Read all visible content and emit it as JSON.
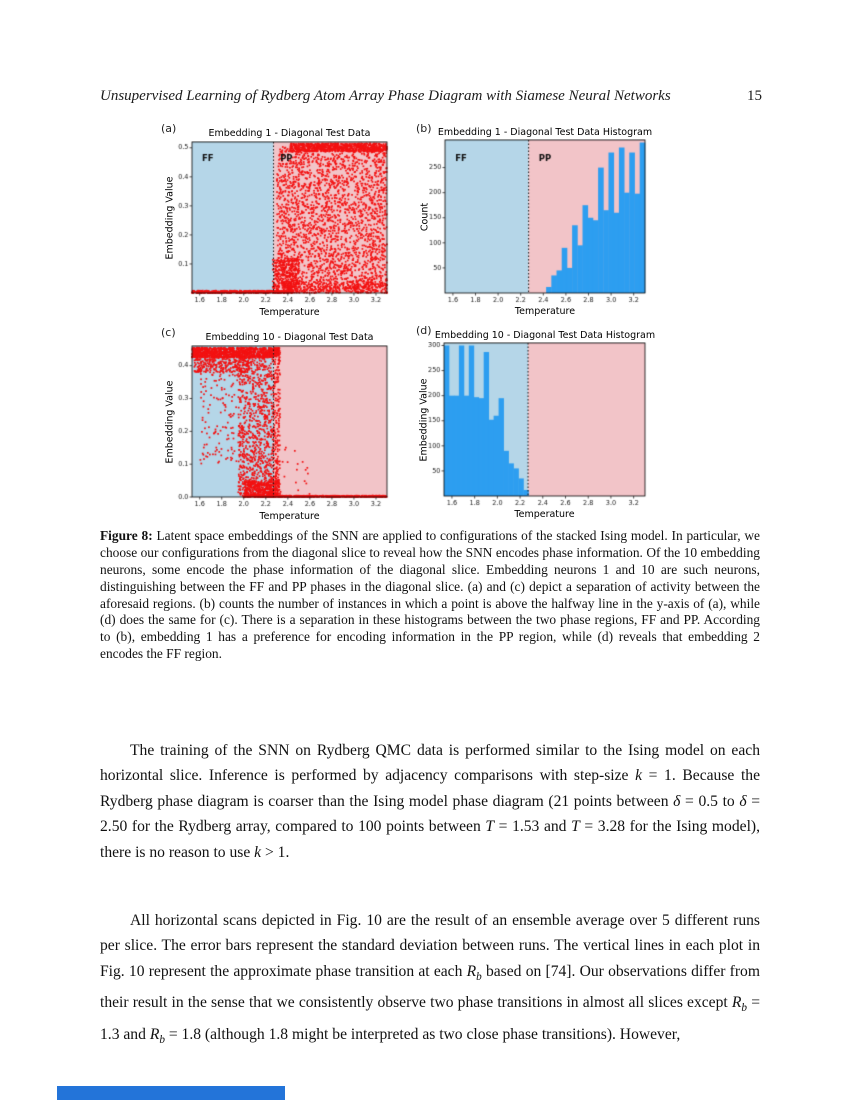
{
  "header": {
    "title": "Unsupervised Learning of Rydberg Atom Array Phase Diagram with Siamese Neural Networks",
    "page_number": "15"
  },
  "caption": {
    "label": "Figure 8:",
    "text": "Latent space embeddings of the SNN are applied to configurations of the stacked Ising model. In particular, we choose our configurations from the diagonal slice to reveal how the SNN encodes phase information. Of the 10 embedding neurons, some encode the phase information of the diagonal slice. Embedding neurons 1 and 10 are such neurons, distinguishing between the FF and PP phases in the diagonal slice. (a) and (c) depict a separation of activity between the aforesaid regions. (b) counts the number of instances in which a point is above the halfway line in the y-axis of (a), while (d) does the same for (c). There is a separation in these histograms between the two phase regions, FF and PP. According to (b), embedding 1 has a preference for encoding information in the PP region, while (d) reveals that embedding 2 encodes the FF region."
  },
  "paragraphs": [
    "The training of the SNN on Rydberg QMC data is performed similar to the Ising model on each horizontal slice. Inference is performed by adjacency comparisons with step-size *k* = 1. Because the Rydberg phase diagram is coarser than the Ising model phase diagram (21 points between *δ* = 0.5 to *δ* = 2.50 for the Rydberg array, compared to 100 points between *T* = 1.53 and *T* = 3.28 for the Ising model), there is no reason to use *k* > 1.",
    "All horizontal scans depicted in Fig. 10 are the result of an ensemble average over 5 different runs per slice. The error bars represent the standard deviation between runs. The vertical lines in each plot in Fig. 10 represent the approximate phase transition at each *R*^*b*^ based on [74]. Our observations differ from their result in the sense that we consistently observe two phase transitions in almost all slices except *R*^*b*^ = 1.3 and *R*^*b*^ = 1.8 (although 1.8 might be interpreted as two close phase transitions). However,"
  ],
  "colors": {
    "ff_region": "#b5d6e8",
    "pp_region": "#f2c4c8",
    "bar": "#2d9ef0",
    "point": "#f31212",
    "spine": "#000000",
    "artifact_bar": "#2374d9"
  },
  "chart_data": [
    {
      "panel": "(a)",
      "type": "scatter",
      "seed": 11,
      "title": "Embedding 1 - Diagonal Test Data",
      "xlabel": "Temperature",
      "ylabel": "Embedding Value",
      "xlim": [
        1.53,
        3.3
      ],
      "ylim": [
        0,
        0.52
      ],
      "xticks": [
        "1.6",
        "1.8",
        "2.0",
        "2.2",
        "2.4",
        "2.6",
        "2.8",
        "3.0",
        "3.2"
      ],
      "yticks": [
        "0.1",
        "0.2",
        "0.3",
        "0.4",
        "0.5"
      ],
      "transition_x": 2.27,
      "grid": false,
      "region_labels": [
        {
          "text": "FF",
          "x": 1.62,
          "y": 0.462
        },
        {
          "text": "PP",
          "x": 2.33,
          "y": 0.462
        }
      ],
      "clusters": [
        {
          "n": 520,
          "x": [
            1.53,
            2.45
          ],
          "y": [
            0.0,
            0.008
          ]
        },
        {
          "n": 2400,
          "x": [
            2.3,
            3.3
          ],
          "y": [
            0.0,
            0.505
          ]
        },
        {
          "n": 750,
          "x": [
            2.42,
            3.3
          ],
          "y": [
            0.487,
            0.515
          ]
        },
        {
          "n": 350,
          "x": [
            2.26,
            2.5
          ],
          "y": [
            0.0,
            0.12
          ]
        },
        {
          "n": 300,
          "x": [
            2.35,
            3.3
          ],
          "y": [
            0.0,
            0.04
          ]
        }
      ]
    },
    {
      "panel": "(b)",
      "type": "histogram",
      "title": "Embedding 1 - Diagonal Test Data Histogram",
      "xlabel": "Temperature",
      "ylabel": "Count",
      "xlim": [
        1.53,
        3.3
      ],
      "ylim": [
        0,
        305
      ],
      "xticks": [
        "1.6",
        "1.8",
        "2.0",
        "2.2",
        "2.4",
        "2.6",
        "2.8",
        "3.0",
        "3.2"
      ],
      "yticks": [
        "50",
        "100",
        "150",
        "200",
        "250"
      ],
      "transition_x": 2.27,
      "grid": false,
      "region_labels": [
        {
          "text": "FF",
          "x": 1.62,
          "y": 268
        },
        {
          "text": "PP",
          "x": 2.36,
          "y": 268
        }
      ],
      "bins": {
        "start": 2.425,
        "width": 0.046,
        "counts": [
          12,
          35,
          45,
          90,
          50,
          135,
          95,
          175,
          150,
          145,
          250,
          165,
          280,
          160,
          290,
          200,
          280,
          198,
          300
        ]
      }
    },
    {
      "panel": "(c)",
      "type": "scatter",
      "seed": 23,
      "title": "Embedding 10 - Diagonal Test Data",
      "xlabel": "Temperature",
      "ylabel": "Embedding Value",
      "xlim": [
        1.53,
        3.3
      ],
      "ylim": [
        0,
        0.46
      ],
      "xticks": [
        "1.6",
        "1.8",
        "2.0",
        "2.2",
        "2.4",
        "2.6",
        "2.8",
        "3.0",
        "3.2"
      ],
      "yticks": [
        "0.0",
        "0.1",
        "0.2",
        "0.3",
        "0.4"
      ],
      "transition_x": 2.27,
      "grid": false,
      "region_labels": [],
      "clusters": [
        {
          "n": 950,
          "x": [
            1.53,
            2.33
          ],
          "y": [
            0.425,
            0.455
          ]
        },
        {
          "n": 360,
          "x": [
            1.55,
            2.05
          ],
          "y": [
            0.38,
            0.445
          ]
        },
        {
          "n": 170,
          "x": [
            1.6,
            2.0
          ],
          "y": [
            0.1,
            0.42
          ]
        },
        {
          "n": 1150,
          "x": [
            1.95,
            2.33
          ],
          "y": [
            0.0,
            0.44
          ],
          "ypow": 1.15
        },
        {
          "n": 380,
          "x": [
            2.0,
            2.33
          ],
          "y": [
            0.0,
            0.05
          ]
        },
        {
          "n": 650,
          "x": [
            2.0,
            3.3
          ],
          "y": [
            0.0,
            0.004
          ]
        },
        {
          "n": 22,
          "x": [
            2.28,
            2.6
          ],
          "y": [
            0.0,
            0.16
          ]
        }
      ]
    },
    {
      "panel": "(d)",
      "type": "histogram",
      "title": "Embedding 10 - Diagonal Test Data Histogram",
      "xlabel": "Temperature",
      "ylabel": "Embedding Value",
      "xlim": [
        1.53,
        3.3
      ],
      "ylim": [
        0,
        305
      ],
      "xticks": [
        "1.6",
        "1.8",
        "2.0",
        "2.2",
        "2.4",
        "2.6",
        "2.8",
        "3.0",
        "3.2"
      ],
      "yticks": [
        "50",
        "100",
        "150",
        "200",
        "250",
        "300"
      ],
      "transition_x": 2.27,
      "grid": false,
      "region_labels": [],
      "bins": {
        "start": 1.53,
        "width": 0.0437,
        "counts": [
          300,
          200,
          200,
          300,
          200,
          300,
          197,
          195,
          287,
          152,
          160,
          195,
          90,
          65,
          55,
          35,
          12
        ]
      }
    }
  ]
}
